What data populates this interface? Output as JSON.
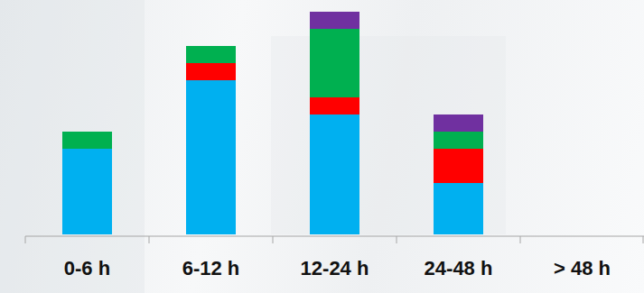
{
  "chart_data": {
    "type": "bar",
    "stacked": true,
    "tick_labels": "x",
    "categories": [
      "0-6 h",
      "6-12 h",
      "12-24 h",
      "24-48 h",
      "> 48 h"
    ],
    "ylim": [
      0,
      13
    ],
    "series": [
      {
        "color": "#00b0f0",
        "values": [
          5,
          9,
          7,
          3,
          0
        ]
      },
      {
        "color": "#ff0000",
        "values": [
          0,
          1,
          1,
          2,
          0
        ]
      },
      {
        "color": "#00b050",
        "values": [
          1,
          1,
          4,
          1,
          0
        ]
      },
      {
        "color": "#7030a0",
        "values": [
          0,
          0,
          1,
          1,
          0
        ]
      }
    ]
  }
}
